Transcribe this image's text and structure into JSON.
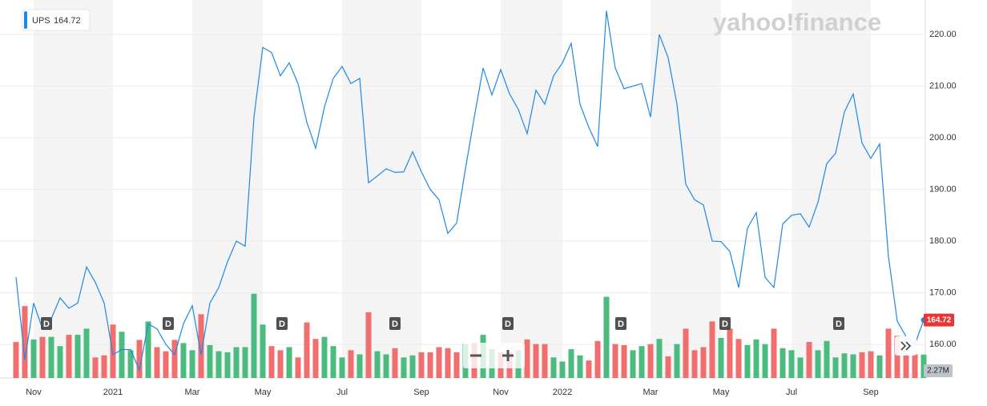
{
  "chart_data": {
    "type": "line",
    "watermark": "yahoo!finance",
    "categories": [
      null,
      null,
      "Nov",
      null,
      null,
      null,
      null,
      null,
      null,
      null,
      null,
      "2021",
      null,
      null,
      null,
      null,
      null,
      null,
      null,
      null,
      "Mar",
      null,
      null,
      null,
      null,
      null,
      null,
      null,
      "May",
      null,
      null,
      null,
      null,
      null,
      null,
      null,
      null,
      "Jul",
      null,
      null,
      null,
      null,
      null,
      null,
      null,
      null,
      "Sep",
      null,
      null,
      null,
      null,
      null,
      null,
      null,
      null,
      "Nov",
      null,
      null,
      null,
      null,
      null,
      null,
      "2022",
      null,
      null,
      null,
      null,
      null,
      null,
      null,
      null,
      null,
      "Mar",
      null,
      null,
      null,
      null,
      null,
      null,
      null,
      "May",
      null,
      null,
      null,
      null,
      null,
      null,
      null,
      "Jul",
      null,
      null,
      null,
      null,
      null,
      null,
      null,
      null,
      "Sep",
      null,
      null,
      null,
      null,
      null,
      null
    ],
    "series": [
      {
        "name": "UPS",
        "color": "#1e88e5",
        "values": [
          173,
          157,
          168,
          163,
          165,
          169,
          167,
          168,
          175,
          172,
          168,
          158,
          159,
          159,
          155,
          164,
          163,
          160,
          158,
          164,
          167.5,
          158,
          168,
          171,
          176,
          180,
          179,
          204,
          217.5,
          216.5,
          212,
          214.5,
          210.5,
          203,
          198,
          206,
          211.5,
          213.8,
          210.5,
          211.5,
          191.3,
          192.6,
          194,
          193.3,
          193.4,
          197.3,
          193.4,
          190,
          188,
          181.5,
          183.5,
          194,
          204,
          213.5,
          208.3,
          213.2,
          208.5,
          205.5,
          200.8,
          209.2,
          206.5,
          212,
          214.5,
          218.3,
          206.5,
          202,
          198.3,
          224.6,
          213.5,
          209.5,
          210,
          210.5,
          204,
          220,
          215.5,
          206.5,
          191,
          188,
          187,
          180,
          179.9,
          178,
          171,
          182.5,
          185.5,
          173,
          171,
          183.3,
          185,
          185.3,
          182.7,
          187.5,
          195,
          197,
          205,
          208.5,
          199,
          196,
          198.8,
          177,
          164.5,
          161.5,
          160,
          164.72
        ]
      }
    ],
    "volume": {
      "ylim": [
        0,
        12
      ],
      "last_label": "2.27M",
      "values": [
        3.5,
        7.0,
        3.75,
        4.0,
        4.0,
        3.1,
        4.2,
        4.2,
        4.8,
        2.0,
        2.2,
        5.2,
        4.5,
        2.7,
        3.7,
        5.5,
        3.0,
        2.6,
        3.7,
        3.4,
        2.7,
        6.2,
        3.2,
        2.6,
        2.5,
        3.0,
        3.0,
        8.2,
        5.2,
        3.1,
        2.7,
        3.0,
        2.0,
        5.4,
        3.8,
        4.0,
        3.1,
        2.0,
        2.7,
        2.3,
        6.4,
        2.6,
        2.3,
        2.9,
        2.0,
        2.2,
        2.5,
        2.5,
        3.0,
        2.9,
        2.5,
        3.3,
        3.4,
        4.2,
        2.8,
        2.5,
        2.5,
        2.7,
        3.75,
        3.3,
        3.3,
        2.0,
        1.6,
        2.8,
        2.2,
        1.7,
        3.6,
        7.9,
        3.3,
        3.2,
        2.7,
        3.1,
        3.3,
        3.8,
        2.1,
        3.3,
        4.8,
        2.7,
        3.0,
        5.5,
        3.9,
        4.8,
        3.8,
        3.2,
        3.75,
        3.3,
        4.8,
        2.9,
        2.7,
        2.0,
        3.5,
        2.7,
        3.6,
        2.0,
        2.4,
        2.3,
        2.5,
        2.6,
        2.2,
        4.8,
        4.1,
        2.3,
        2.3,
        2.27
      ],
      "colors": [
        "#f06e6e",
        "#f06e6e",
        "#4cbb7f",
        "#f06e6e",
        "#4cbb7f",
        "#4cbb7f",
        "#f06e6e",
        "#4cbb7f",
        "#4cbb7f",
        "#f06e6e",
        "#f06e6e",
        "#f06e6e",
        "#4cbb7f",
        "#4cbb7f",
        "#f06e6e",
        "#4cbb7f",
        "#f06e6e",
        "#f06e6e",
        "#f06e6e",
        "#4cbb7f",
        "#4cbb7f",
        "#f06e6e",
        "#4cbb7f",
        "#4cbb7f",
        "#4cbb7f",
        "#4cbb7f",
        "#4cbb7f",
        "#4cbb7f",
        "#4cbb7f",
        "#f06e6e",
        "#f06e6e",
        "#4cbb7f",
        "#f06e6e",
        "#f06e6e",
        "#f06e6e",
        "#4cbb7f",
        "#4cbb7f",
        "#4cbb7f",
        "#f06e6e",
        "#4cbb7f",
        "#f06e6e",
        "#4cbb7f",
        "#4cbb7f",
        "#f06e6e",
        "#4cbb7f",
        "#4cbb7f",
        "#f06e6e",
        "#f06e6e",
        "#f06e6e",
        "#f06e6e",
        "#f06e6e",
        "#4cbb7f",
        "#f06e6e",
        "#4cbb7f",
        "#4cbb7f",
        "#f06e6e",
        "#f06e6e",
        "#4cbb7f",
        "#f06e6e",
        "#f06e6e",
        "#f06e6e",
        "#4cbb7f",
        "#4cbb7f",
        "#4cbb7f",
        "#4cbb7f",
        "#f06e6e",
        "#f06e6e",
        "#4cbb7f",
        "#f06e6e",
        "#f06e6e",
        "#4cbb7f",
        "#4cbb7f",
        "#f06e6e",
        "#4cbb7f",
        "#f06e6e",
        "#4cbb7f",
        "#f06e6e",
        "#f06e6e",
        "#f06e6e",
        "#f06e6e",
        "#4cbb7f",
        "#f06e6e",
        "#f06e6e",
        "#4cbb7f",
        "#4cbb7f",
        "#4cbb7f",
        "#f06e6e",
        "#4cbb7f",
        "#4cbb7f",
        "#4cbb7f",
        "#f06e6e",
        "#4cbb7f",
        "#4cbb7f",
        "#4cbb7f",
        "#4cbb7f",
        "#4cbb7f",
        "#f06e6e",
        "#f06e6e",
        "#4cbb7f",
        "#f06e6e",
        "#f06e6e",
        "#f06e6e",
        "#f06e6e",
        "#4cbb7f"
      ]
    },
    "dividend_markers": [
      "D",
      "D",
      "D",
      "D",
      "D",
      "D",
      "D",
      "D"
    ],
    "ylim": [
      153.5,
      225.9
    ],
    "yticks": [
      {
        "value": 160,
        "label": "160.00"
      },
      {
        "value": 170,
        "label": "170.00"
      },
      {
        "value": 180,
        "label": "180.00"
      },
      {
        "value": 190,
        "label": "190.00"
      },
      {
        "value": 200,
        "label": "200.00"
      },
      {
        "value": 210,
        "label": "210.00"
      },
      {
        "value": 220,
        "label": "220.00"
      }
    ],
    "grid": true
  }
}
